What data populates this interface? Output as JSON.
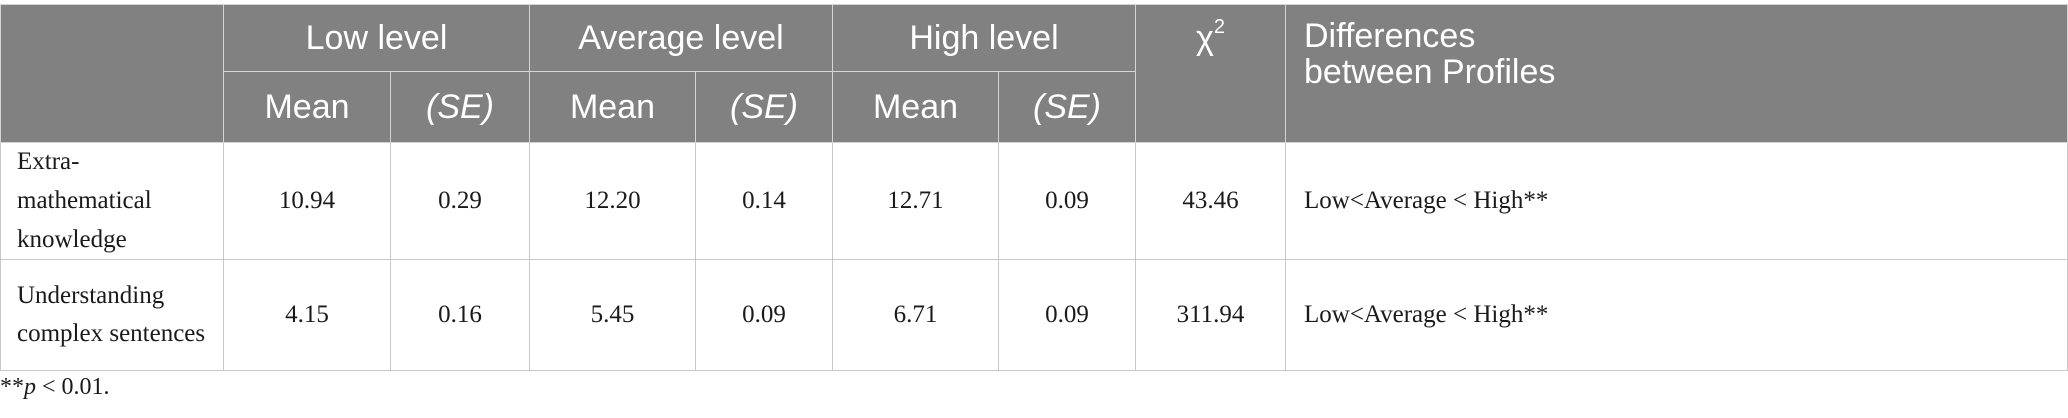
{
  "table": {
    "groups": {
      "low": "Low level",
      "average": "Average level",
      "high": "High level",
      "chi": "χ",
      "chi_sup": "2",
      "differences": "Differences between Profiles"
    },
    "subheaders": {
      "mean": "Mean",
      "se": "(SE)"
    },
    "rows": [
      {
        "label": "Extra-mathematical knowledge",
        "low_mean": "10.94",
        "low_se": "0.29",
        "avg_mean": "12.20",
        "avg_se": "0.14",
        "high_mean": "12.71",
        "high_se": "0.09",
        "chi2": "43.46",
        "diff": "Low<Average < High**"
      },
      {
        "label": "Understanding complex sentences",
        "low_mean": "4.15",
        "low_se": "0.16",
        "avg_mean": "5.45",
        "avg_se": "0.09",
        "high_mean": "6.71",
        "high_se": "0.09",
        "chi2": "311.94",
        "diff": "Low<Average < High**"
      }
    ]
  },
  "footnote": {
    "stars": "**",
    "p": "p",
    "rest": " < 0.01."
  }
}
